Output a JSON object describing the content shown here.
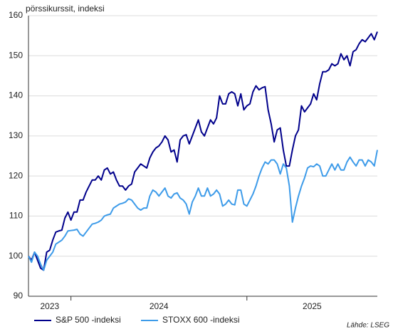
{
  "chart_data": {
    "type": "line",
    "y_label": "pörssikurssit, indeksi",
    "source": "Lähde: LSEG",
    "xlim": [
      0,
      115
    ],
    "xticks": [
      14,
      72
    ],
    "x_labels": [
      "2023",
      "2024",
      "2025"
    ],
    "ylim": [
      90,
      160
    ],
    "yticks": [
      90,
      100,
      110,
      120,
      130,
      140,
      150,
      160
    ],
    "grid": true,
    "legend": "bottom",
    "series": [
      {
        "name": "S&P 500 -indeksi",
        "color": "#00008b",
        "values": [
          100,
          99,
          101,
          99,
          97,
          96.5,
          101,
          101.5,
          104,
          106,
          106.3,
          106.5,
          109.5,
          111,
          109,
          111,
          111,
          114,
          114,
          116,
          117.5,
          119,
          119,
          120,
          119,
          121.5,
          122,
          120.5,
          121,
          119,
          117.5,
          117.5,
          116.5,
          117.5,
          118,
          121,
          122,
          123,
          122.5,
          122,
          124.5,
          126,
          127,
          127.5,
          128.5,
          130,
          129,
          126,
          126.5,
          123.5,
          129,
          130,
          130.3,
          128,
          130,
          132,
          134,
          131,
          130,
          132,
          134,
          133,
          134.5,
          140,
          138,
          138,
          140.5,
          141,
          140.5,
          137.5,
          140.5,
          136.5,
          137.5,
          138,
          141,
          142.5,
          141.5,
          142,
          142.3,
          136.5,
          133,
          128.5,
          131.5,
          132,
          126.5,
          122.5,
          122.5,
          126.5,
          130,
          131.5,
          137.5,
          136,
          137,
          138,
          140.5,
          139,
          143,
          146,
          146,
          146.5,
          148,
          147.5,
          148,
          150.5,
          149,
          150,
          147.5,
          151,
          151.5,
          153,
          154,
          153.5,
          154.5,
          155.5,
          154,
          156
        ]
      },
      {
        "name": "STOXX 600 -indeksi",
        "color": "#3d9be9",
        "values": [
          100,
          98.5,
          101,
          100,
          98,
          96.5,
          99,
          100,
          101,
          103,
          103.5,
          104,
          105,
          106.3,
          106.4,
          106.5,
          106.7,
          105.5,
          105,
          106,
          107,
          108,
          108.2,
          108.5,
          109,
          110,
          110.3,
          110.5,
          112,
          112.5,
          113,
          113.2,
          113.5,
          114.3,
          114,
          113,
          112,
          111.5,
          112,
          112,
          115,
          116.5,
          116,
          115,
          116,
          117,
          115,
          114.5,
          115.5,
          115.8,
          114.5,
          114,
          113,
          110.5,
          113.5,
          115,
          117,
          115,
          115,
          117,
          115,
          115.5,
          116.5,
          115.5,
          112.5,
          113,
          114,
          113,
          112.8,
          116.5,
          116.5,
          113,
          112.5,
          114,
          115.5,
          117.5,
          120,
          122,
          123.5,
          123,
          124,
          124,
          123,
          120.5,
          123,
          122,
          117.5,
          108.5,
          112,
          115,
          117.5,
          119.5,
          122,
          122.5,
          122.3,
          123,
          122.5,
          120,
          120,
          121.5,
          123,
          121.5,
          123,
          121.5,
          121.5,
          123.5,
          124.7,
          123.5,
          122.5,
          124,
          124,
          122.5,
          124,
          123.5,
          122.5,
          126.5
        ]
      }
    ]
  }
}
